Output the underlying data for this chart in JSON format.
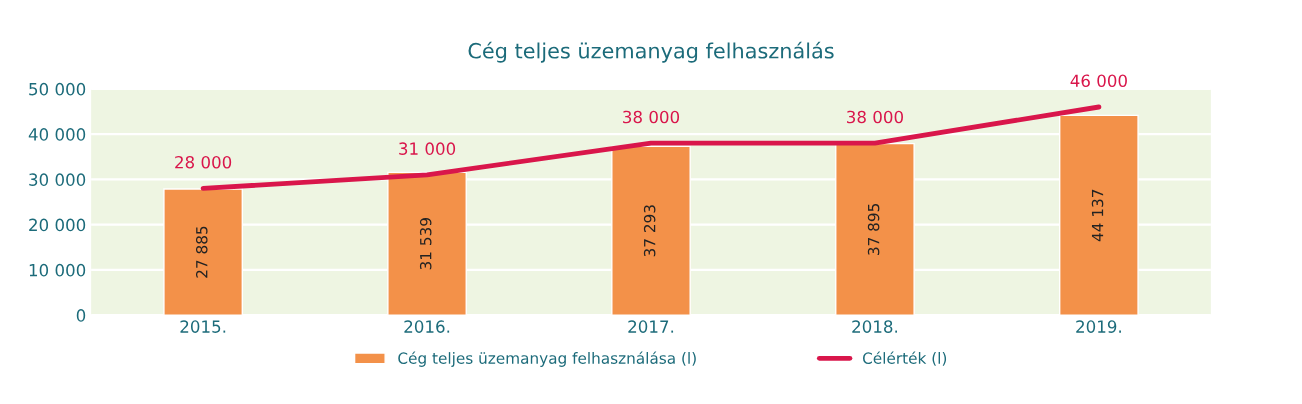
{
  "chart_data": {
    "type": "bar",
    "title": "Cég teljes üzemanyag felhasználás",
    "categories": [
      "2015.",
      "2016.",
      "2017.",
      "2018.",
      "2019."
    ],
    "series": [
      {
        "name": "Cég teljes üzemanyag felhasználása (l)",
        "color": "#f39149",
        "values": [
          27885,
          31539,
          37293,
          37895,
          44137
        ],
        "value_labels": [
          "27 885",
          "31 539",
          "37 293",
          "37 895",
          "44 137"
        ]
      },
      {
        "name": "Célérték (l)",
        "type": "line",
        "color": "#d9164b",
        "values": [
          28000,
          31000,
          38000,
          38000,
          46000
        ],
        "value_labels": [
          "28 000",
          "31 000",
          "38 000",
          "38 000",
          "46 000"
        ]
      }
    ],
    "ylim": [
      0,
      50000
    ],
    "yticks": [
      {
        "value": 0,
        "label": "0"
      },
      {
        "value": 10000,
        "label": "10 000"
      },
      {
        "value": 20000,
        "label": "20 000"
      },
      {
        "value": 30000,
        "label": "30 000"
      },
      {
        "value": 40000,
        "label": "40 000"
      },
      {
        "value": 50000,
        "label": "50 000"
      }
    ],
    "grid": "y",
    "legend": "bottom",
    "marker": "none",
    "line_style": "solid"
  }
}
